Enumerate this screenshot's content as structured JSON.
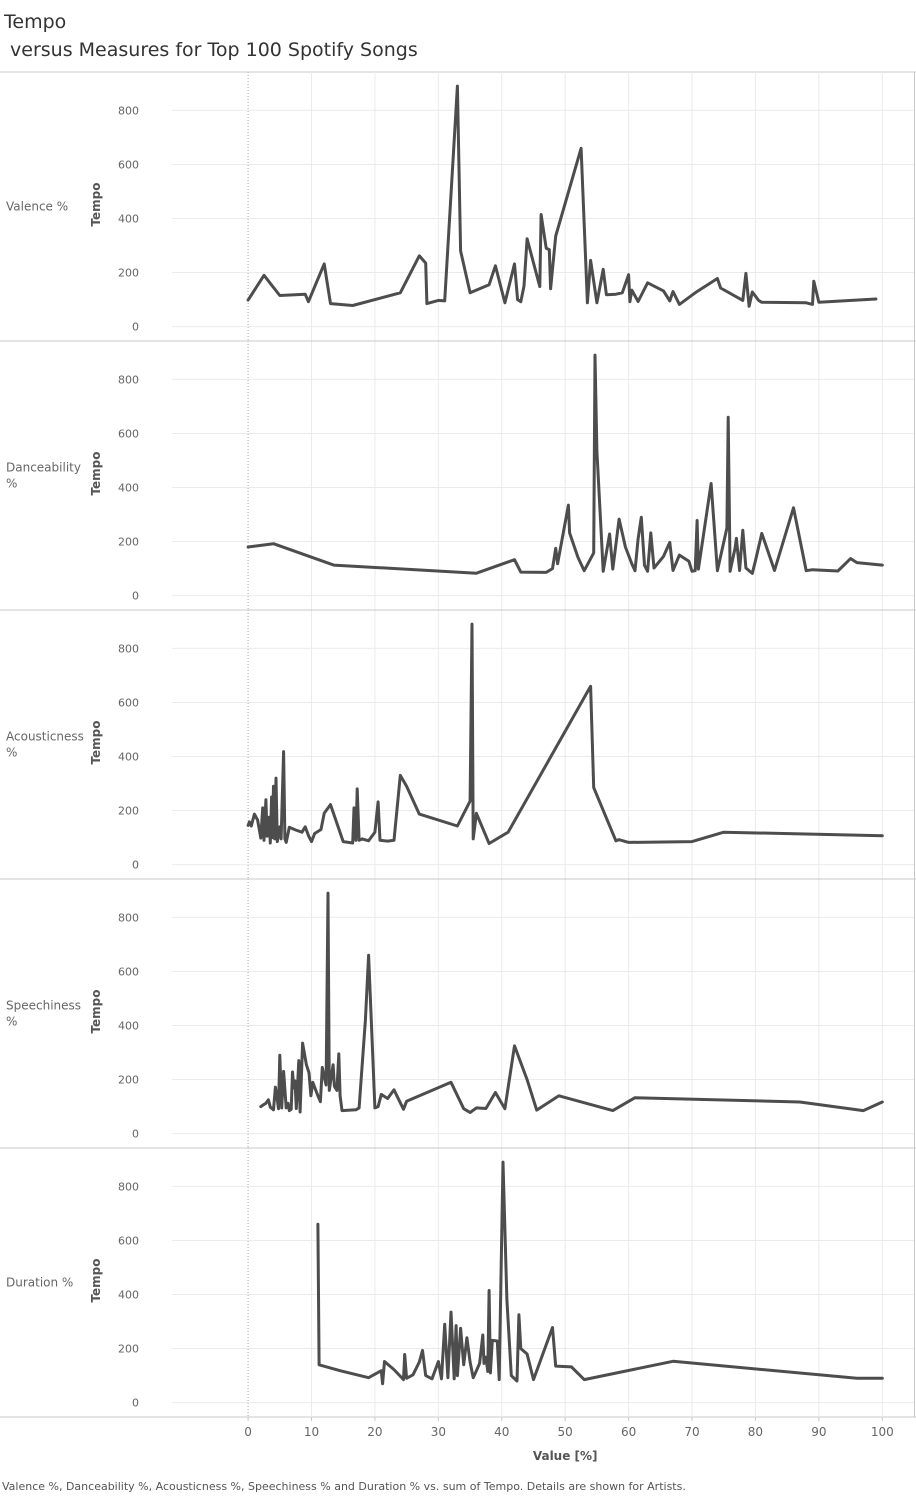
{
  "title": {
    "line1": "Tempo",
    "line2": " versus Measures for Top 100 Spotify Songs"
  },
  "caption": "Valence %, Danceability %, Acousticness %, Speechiness % and Duration % vs. sum of Tempo.  Details are shown for Artists.",
  "colors": {
    "line": "#4d4d4d",
    "grid": "#ebebeb",
    "border": "#c8c8c8",
    "axis_text": "#666666"
  },
  "chart_data": {
    "type": "line",
    "shared_x_axis": {
      "label": "Value  [%]",
      "range": [
        -12,
        105
      ],
      "ticks": [
        0,
        10,
        20,
        30,
        40,
        50,
        60,
        70,
        80,
        90,
        100
      ]
    },
    "y_axis": {
      "label": "Tempo",
      "range": [
        -20,
        920
      ],
      "ticks": [
        0,
        200,
        400,
        600,
        800
      ]
    },
    "panels": [
      {
        "name": "Valence %",
        "points": [
          [
            0,
            98
          ],
          [
            2.5,
            190
          ],
          [
            5,
            115
          ],
          [
            9,
            120
          ],
          [
            9.5,
            92
          ],
          [
            12,
            232
          ],
          [
            13,
            85
          ],
          [
            16.5,
            78
          ],
          [
            24,
            125
          ],
          [
            27,
            262
          ],
          [
            28,
            235
          ],
          [
            28.2,
            85
          ],
          [
            30,
            97
          ],
          [
            31,
            95
          ],
          [
            33,
            890
          ],
          [
            33.5,
            280
          ],
          [
            35,
            125
          ],
          [
            38,
            155
          ],
          [
            39,
            225
          ],
          [
            40.5,
            88
          ],
          [
            42,
            232
          ],
          [
            42.5,
            100
          ],
          [
            43,
            92
          ],
          [
            43.5,
            150
          ],
          [
            44,
            325
          ],
          [
            46,
            148
          ],
          [
            46.2,
            415
          ],
          [
            47,
            290
          ],
          [
            47.5,
            285
          ],
          [
            47.7,
            140
          ],
          [
            48.5,
            335
          ],
          [
            52.5,
            660
          ],
          [
            53.5,
            88
          ],
          [
            54,
            245
          ],
          [
            55,
            88
          ],
          [
            56,
            212
          ],
          [
            56.5,
            118
          ],
          [
            58,
            120
          ],
          [
            59,
            125
          ],
          [
            60,
            192
          ],
          [
            60.2,
            92
          ],
          [
            60.5,
            135
          ],
          [
            61.5,
            93
          ],
          [
            63,
            162
          ],
          [
            65.5,
            132
          ],
          [
            66.5,
            95
          ],
          [
            67,
            130
          ],
          [
            68,
            82
          ],
          [
            70.5,
            125
          ],
          [
            74,
            178
          ],
          [
            74.5,
            143
          ],
          [
            78,
            97
          ],
          [
            78.5,
            197
          ],
          [
            79,
            75
          ],
          [
            79.5,
            128
          ],
          [
            80.5,
            97
          ],
          [
            81,
            90
          ],
          [
            88,
            88
          ],
          [
            89,
            82
          ],
          [
            89.2,
            168
          ],
          [
            90,
            90
          ],
          [
            99,
            102
          ]
        ]
      },
      {
        "name": "Danceability %",
        "points": [
          [
            0,
            180
          ],
          [
            4,
            192
          ],
          [
            13.5,
            113
          ],
          [
            36,
            83
          ],
          [
            42,
            133
          ],
          [
            43,
            87
          ],
          [
            47,
            86
          ],
          [
            48,
            100
          ],
          [
            48.5,
            175
          ],
          [
            48.8,
            118
          ],
          [
            50.5,
            335
          ],
          [
            50.7,
            232
          ],
          [
            52,
            142
          ],
          [
            53,
            92
          ],
          [
            54.5,
            158
          ],
          [
            54.7,
            890
          ],
          [
            55,
            535
          ],
          [
            56,
            90
          ],
          [
            57,
            228
          ],
          [
            57.5,
            98
          ],
          [
            58.5,
            283
          ],
          [
            59.5,
            180
          ],
          [
            60.5,
            118
          ],
          [
            61,
            92
          ],
          [
            61.5,
            210
          ],
          [
            62,
            290
          ],
          [
            62.5,
            112
          ],
          [
            63,
            90
          ],
          [
            63.5,
            232
          ],
          [
            64,
            102
          ],
          [
            65.5,
            145
          ],
          [
            66.5,
            197
          ],
          [
            67,
            93
          ],
          [
            68,
            150
          ],
          [
            69.5,
            127
          ],
          [
            70,
            90
          ],
          [
            70.5,
            92
          ],
          [
            70.8,
            278
          ],
          [
            71,
            98
          ],
          [
            73,
            415
          ],
          [
            74,
            92
          ],
          [
            75.5,
            250
          ],
          [
            75.7,
            660
          ],
          [
            76,
            90
          ],
          [
            76.8,
            178
          ],
          [
            77,
            212
          ],
          [
            77.5,
            93
          ],
          [
            78,
            242
          ],
          [
            78.5,
            102
          ],
          [
            79,
            92
          ],
          [
            79.5,
            82
          ],
          [
            80,
            130
          ],
          [
            81,
            230
          ],
          [
            83,
            93
          ],
          [
            86,
            325
          ],
          [
            88,
            92
          ],
          [
            89,
            96
          ],
          [
            93,
            91
          ],
          [
            95,
            137
          ],
          [
            96,
            122
          ],
          [
            100,
            113
          ]
        ]
      },
      {
        "name": "Acousticness %",
        "points": [
          [
            0,
            145
          ],
          [
            0.2,
            158
          ],
          [
            0.5,
            143
          ],
          [
            1,
            187
          ],
          [
            1.5,
            165
          ],
          [
            2,
            98
          ],
          [
            2.3,
            210
          ],
          [
            2.5,
            90
          ],
          [
            2.8,
            240
          ],
          [
            3,
            105
          ],
          [
            3.3,
            175
          ],
          [
            3.5,
            80
          ],
          [
            3.7,
            250
          ],
          [
            3.8,
            100
          ],
          [
            4,
            290
          ],
          [
            4.2,
            95
          ],
          [
            4.4,
            320
          ],
          [
            4.6,
            85
          ],
          [
            5,
            140
          ],
          [
            5.2,
            95
          ],
          [
            5.6,
            418
          ],
          [
            5.8,
            95
          ],
          [
            6,
            82
          ],
          [
            6.5,
            138
          ],
          [
            7.5,
            128
          ],
          [
            8.5,
            120
          ],
          [
            9,
            140
          ],
          [
            9.5,
            108
          ],
          [
            10,
            85
          ],
          [
            10.5,
            115
          ],
          [
            11.5,
            130
          ],
          [
            12,
            190
          ],
          [
            13,
            222
          ],
          [
            15,
            85
          ],
          [
            16.5,
            80
          ],
          [
            16.7,
            210
          ],
          [
            17,
            90
          ],
          [
            17.2,
            280
          ],
          [
            17.5,
            90
          ],
          [
            18,
            95
          ],
          [
            19,
            88
          ],
          [
            20,
            120
          ],
          [
            20.5,
            232
          ],
          [
            20.8,
            90
          ],
          [
            22,
            87
          ],
          [
            23,
            90
          ],
          [
            24,
            330
          ],
          [
            25,
            290
          ],
          [
            27,
            187
          ],
          [
            33,
            143
          ],
          [
            35,
            235
          ],
          [
            35.3,
            890
          ],
          [
            35.5,
            95
          ],
          [
            36,
            190
          ],
          [
            38,
            78
          ],
          [
            41,
            120
          ],
          [
            54,
            660
          ],
          [
            54.5,
            285
          ],
          [
            58,
            88
          ],
          [
            58.5,
            92
          ],
          [
            60,
            82
          ],
          [
            70,
            85
          ],
          [
            75,
            120
          ],
          [
            100,
            107
          ]
        ]
      },
      {
        "name": "Speechiness %",
        "points": [
          [
            2,
            100
          ],
          [
            2.5,
            108
          ],
          [
            2.8,
            112
          ],
          [
            3.2,
            125
          ],
          [
            3.5,
            98
          ],
          [
            4,
            88
          ],
          [
            4.3,
            172
          ],
          [
            4.6,
            125
          ],
          [
            4.8,
            92
          ],
          [
            5,
            290
          ],
          [
            5.3,
            95
          ],
          [
            5.6,
            230
          ],
          [
            6,
            95
          ],
          [
            6.3,
            112
          ],
          [
            6.5,
            85
          ],
          [
            6.8,
            90
          ],
          [
            7,
            228
          ],
          [
            7.2,
            170
          ],
          [
            7.4,
            195
          ],
          [
            7.6,
            93
          ],
          [
            7.8,
            180
          ],
          [
            8,
            270
          ],
          [
            8.2,
            80
          ],
          [
            8.6,
            335
          ],
          [
            9.2,
            255
          ],
          [
            9.6,
            225
          ],
          [
            9.9,
            140
          ],
          [
            10.2,
            190
          ],
          [
            10.6,
            165
          ],
          [
            11,
            140
          ],
          [
            11.4,
            118
          ],
          [
            11.7,
            245
          ],
          [
            12,
            210
          ],
          [
            12.3,
            180
          ],
          [
            12.6,
            890
          ],
          [
            12.8,
            160
          ],
          [
            13.4,
            255
          ],
          [
            13.6,
            175
          ],
          [
            14,
            160
          ],
          [
            14.3,
            295
          ],
          [
            14.5,
            140
          ],
          [
            14.8,
            85
          ],
          [
            17,
            88
          ],
          [
            17.5,
            95
          ],
          [
            18.5,
            420
          ],
          [
            19,
            660
          ],
          [
            20,
            95
          ],
          [
            20.5,
            100
          ],
          [
            21,
            145
          ],
          [
            22,
            130
          ],
          [
            23,
            162
          ],
          [
            24.5,
            90
          ],
          [
            25,
            120
          ],
          [
            32,
            190
          ],
          [
            34,
            92
          ],
          [
            35,
            78
          ],
          [
            36,
            95
          ],
          [
            37.5,
            93
          ],
          [
            39,
            152
          ],
          [
            40.5,
            92
          ],
          [
            42,
            325
          ],
          [
            44,
            200
          ],
          [
            45.5,
            87
          ],
          [
            49,
            140
          ],
          [
            57.5,
            85
          ],
          [
            61,
            133
          ],
          [
            87,
            117
          ],
          [
            97,
            85
          ],
          [
            100,
            117
          ]
        ]
      },
      {
        "name": "Duration %",
        "points": [
          [
            11,
            660
          ],
          [
            11.2,
            140
          ],
          [
            14.5,
            118
          ],
          [
            19,
            92
          ],
          [
            21,
            118
          ],
          [
            21.2,
            70
          ],
          [
            21.5,
            152
          ],
          [
            23,
            122
          ],
          [
            24.5,
            85
          ],
          [
            24.7,
            178
          ],
          [
            25,
            90
          ],
          [
            26,
            103
          ],
          [
            27,
            150
          ],
          [
            27.5,
            193
          ],
          [
            28,
            100
          ],
          [
            29,
            88
          ],
          [
            30,
            152
          ],
          [
            30.5,
            88
          ],
          [
            31,
            290
          ],
          [
            31.5,
            92
          ],
          [
            32,
            335
          ],
          [
            32.5,
            88
          ],
          [
            32.8,
            285
          ],
          [
            33,
            100
          ],
          [
            33.5,
            275
          ],
          [
            34,
            140
          ],
          [
            34.5,
            240
          ],
          [
            35,
            150
          ],
          [
            35.5,
            92
          ],
          [
            36,
            118
          ],
          [
            36.5,
            145
          ],
          [
            37,
            250
          ],
          [
            37.2,
            145
          ],
          [
            37.5,
            168
          ],
          [
            37.8,
            115
          ],
          [
            38,
            415
          ],
          [
            38.2,
            110
          ],
          [
            38.5,
            230
          ],
          [
            39.3,
            228
          ],
          [
            39.6,
            85
          ],
          [
            40.2,
            890
          ],
          [
            40.8,
            380
          ],
          [
            41.5,
            100
          ],
          [
            42.4,
            80
          ],
          [
            42.7,
            325
          ],
          [
            43,
            200
          ],
          [
            44,
            180
          ],
          [
            45,
            85
          ],
          [
            48,
            278
          ],
          [
            48.5,
            135
          ],
          [
            51,
            132
          ],
          [
            53,
            85
          ],
          [
            67,
            153
          ],
          [
            96,
            90
          ],
          [
            100,
            90
          ]
        ]
      }
    ]
  }
}
